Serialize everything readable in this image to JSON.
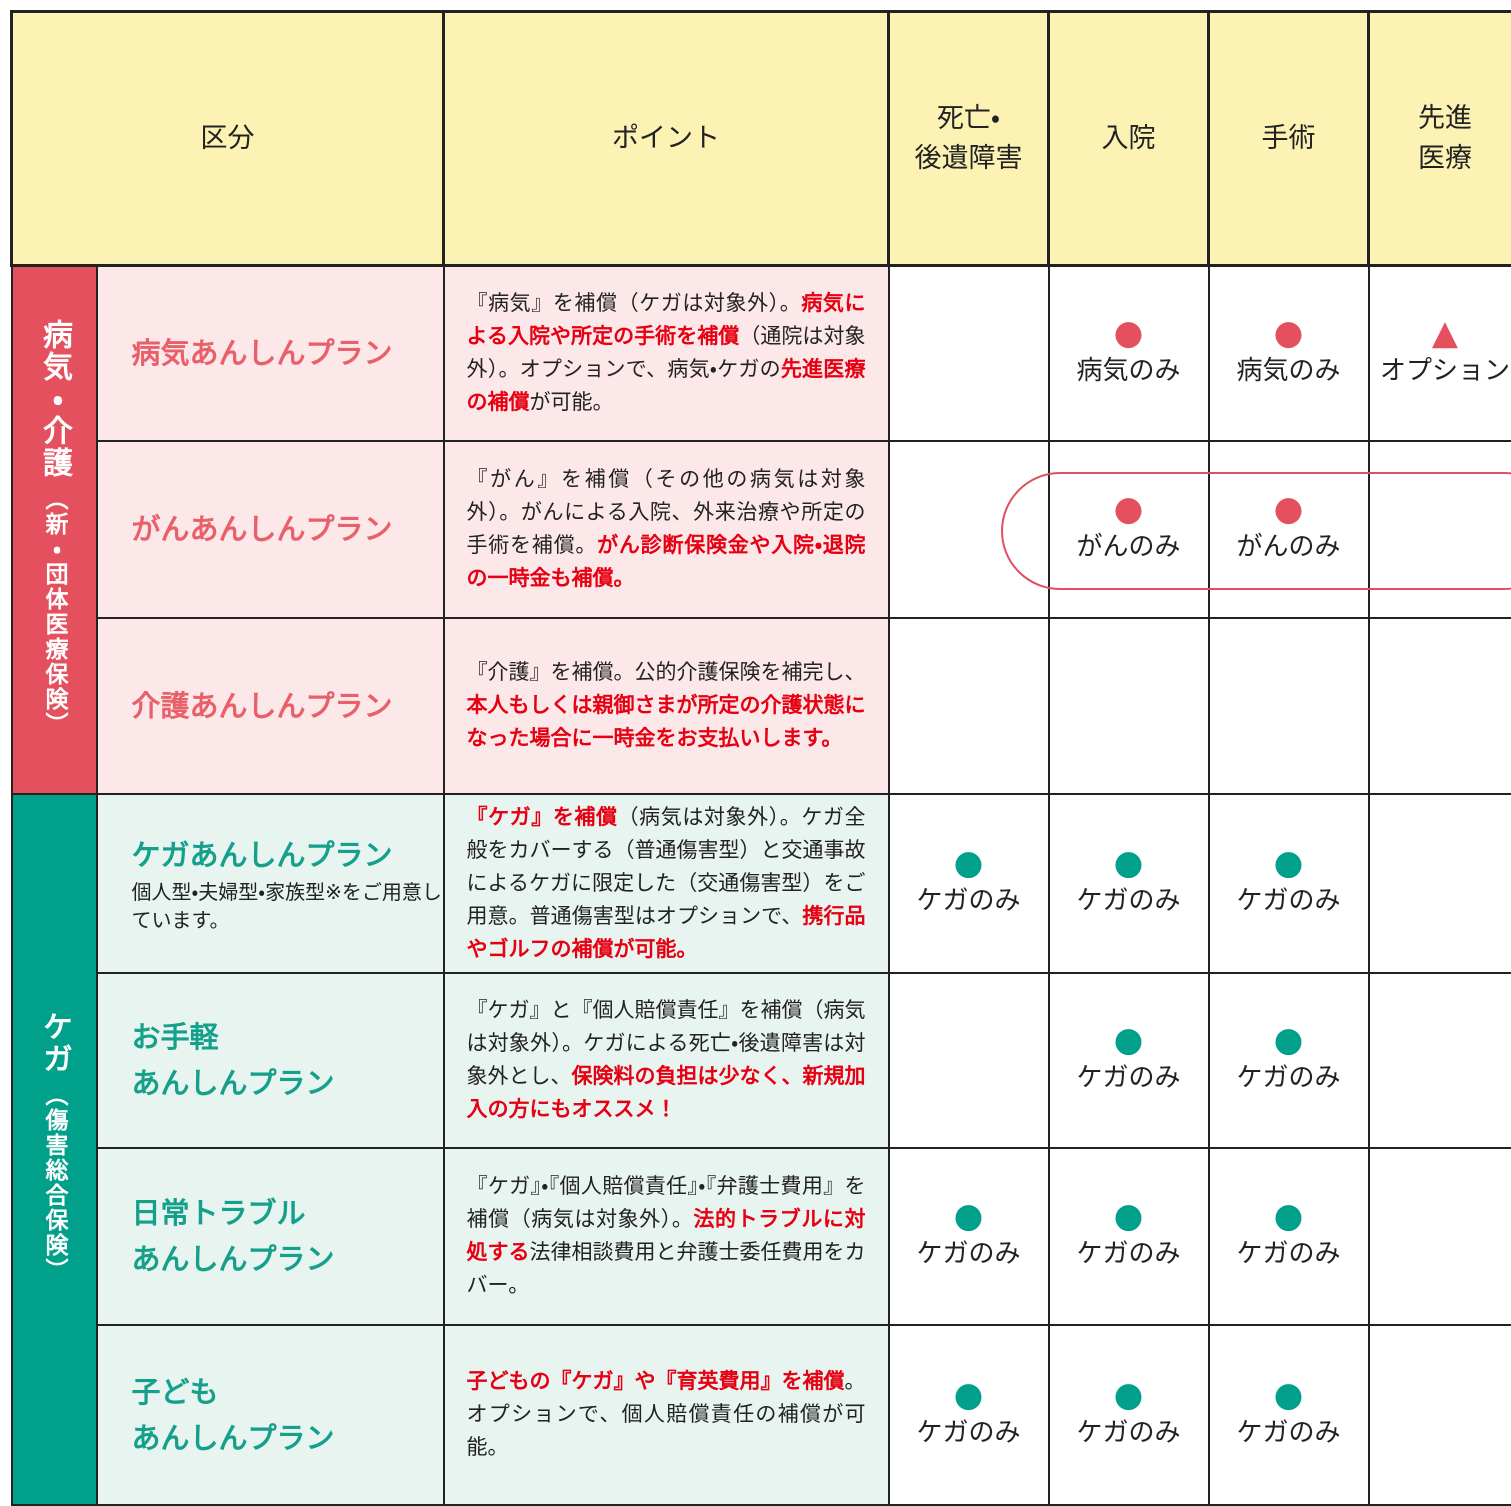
{
  "header": {
    "category": "区分",
    "point": "ポイント",
    "columns": [
      [
        "死亡・",
        "後遺障害"
      ],
      [
        "入院"
      ],
      [
        "手術"
      ],
      [
        "先進",
        "医療"
      ]
    ]
  },
  "groups": [
    {
      "title": "病気・介護",
      "subtitle": "（新・団体医療保険）",
      "color": "#e5505e",
      "bg": "#fde8e9",
      "text_color": "#e8606a",
      "rows": [
        {
          "plan": [
            "病気あんしんプラン"
          ],
          "point": [
            {
              "text": "『病気』を補償（ケガは対象外）。",
              "em": false
            },
            {
              "text": "病気による入院や所定の手術を補償",
              "em": true
            },
            {
              "text": "（通院は対象外）。オプションで、病気・ケガの",
              "em": false
            },
            {
              "text": "先進医療の補償",
              "em": true
            },
            {
              "text": "が可能。",
              "em": false
            }
          ],
          "cells": [
            null,
            {
              "mark": "●",
              "label": "病気のみ"
            },
            {
              "mark": "●",
              "label": "病気のみ"
            },
            {
              "mark": "▲",
              "label": "オプション"
            }
          ]
        },
        {
          "plan": [
            "がんあんしんプラン"
          ],
          "point": [
            {
              "text": "『がん』を補償（その他の病気は対象外）。がんによる入院、外来治療や所定の手術を補償。",
              "em": false
            },
            {
              "text": "がん診断保険金や入院・退院の一時金も補償。",
              "em": true
            }
          ],
          "cells": [
            null,
            {
              "mark": "●",
              "label": "がんのみ"
            },
            {
              "mark": "●",
              "label": "がんのみ"
            },
            null
          ]
        },
        {
          "plan": [
            "介護あんしんプラン"
          ],
          "point": [
            {
              "text": "『介護』を補償。公的介護保険を補完し、",
              "em": false
            },
            {
              "text": "本人もしくは親御さまが所定の介護状態になった場合に一時金をお支払いします。",
              "em": true
            }
          ],
          "cells": [
            null,
            null,
            null,
            null
          ]
        }
      ]
    },
    {
      "title": "ケガ",
      "subtitle": "（傷害総合保険）",
      "color": "#00a08a",
      "bg": "#e8f4f0",
      "text_color": "#14a08a",
      "rows": [
        {
          "plan": [
            "ケガあんしんプラン"
          ],
          "note": "個人型・夫婦型・家族型※をご用意しています。",
          "point": [
            {
              "text": "『ケガ』を補償",
              "em": true
            },
            {
              "text": "（病気は対象外）。ケガ全般をカバーする（普通傷害型）と交通事故によるケガに限定した（交通傷害型）をご用意。普通傷害型はオプションで、",
              "em": false
            },
            {
              "text": "携行品やゴルフの補償が可能。",
              "em": true
            }
          ],
          "cells": [
            {
              "mark": "●",
              "label": "ケガのみ"
            },
            {
              "mark": "●",
              "label": "ケガのみ"
            },
            {
              "mark": "●",
              "label": "ケガのみ"
            },
            null
          ]
        },
        {
          "plan": [
            "お手軽",
            "あんしんプラン"
          ],
          "point": [
            {
              "text": "『ケガ』と『個人賠償責任』を補償（病気は対象外）。ケガによる死亡・後遺障害は対象外とし、",
              "em": false
            },
            {
              "text": "保険料の負担は少なく、新規加入の方にもオススメ！",
              "em": true
            }
          ],
          "cells": [
            null,
            {
              "mark": "●",
              "label": "ケガのみ"
            },
            {
              "mark": "●",
              "label": "ケガのみ"
            },
            null
          ]
        },
        {
          "plan": [
            "日常トラブル",
            "あんしんプラン"
          ],
          "point": [
            {
              "text": "『ケガ』・『個人賠償責任』・『弁護士費用』を補償（病気は対象外）。",
              "em": false
            },
            {
              "text": "法的トラブルに対処する",
              "em": true
            },
            {
              "text": "法律相談費用と弁護士委任費用をカバー。",
              "em": false
            }
          ],
          "cells": [
            {
              "mark": "●",
              "label": "ケガのみ"
            },
            {
              "mark": "●",
              "label": "ケガのみ"
            },
            {
              "mark": "●",
              "label": "ケガのみ"
            },
            null
          ]
        },
        {
          "plan": [
            "子ども",
            "あんしんプラン"
          ],
          "point": [
            {
              "text": "子どもの『ケガ』や『育英費用』を補償",
              "em": true
            },
            {
              "text": "。オプションで、個人賠償責任の補償が可能。",
              "em": false
            }
          ],
          "cells": [
            {
              "mark": "●",
              "label": "ケガのみ"
            },
            {
              "mark": "●",
              "label": "ケガのみ"
            },
            {
              "mark": "●",
              "label": "ケガのみ"
            },
            null
          ]
        }
      ]
    }
  ]
}
